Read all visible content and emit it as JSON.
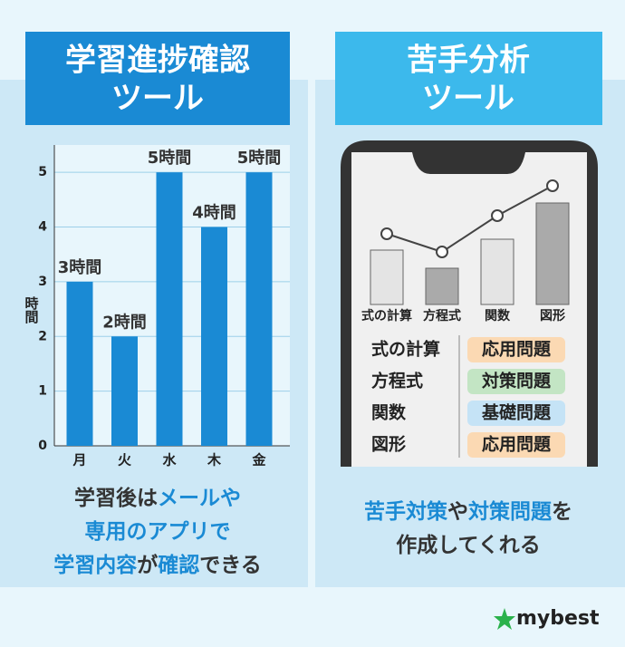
{
  "left": {
    "title": [
      "学習進捗確認",
      "ツール"
    ],
    "chart": {
      "type": "bar",
      "y_label": "時間",
      "categories": [
        "月",
        "火",
        "水",
        "木",
        "金"
      ],
      "values": [
        3,
        2,
        5,
        4,
        5
      ],
      "value_labels": [
        "3時間",
        "2時間",
        "5時間",
        "4時間",
        "5時間"
      ],
      "color": "#1a8ad4",
      "ylim": [
        0,
        5.5
      ],
      "yticks": [
        0,
        1,
        2,
        3,
        4,
        5
      ],
      "grid": true
    },
    "caption": [
      [
        {
          "text": "学習後は",
          "em": false
        },
        {
          "text": "メールや",
          "em": true
        }
      ],
      [
        {
          "text": "専用のアプリで",
          "em": true
        }
      ],
      [
        {
          "text": "学習内容",
          "em": true
        },
        {
          "text": "が",
          "em": false
        },
        {
          "text": "確認",
          "em": true
        },
        {
          "text": "できる",
          "em": false
        }
      ]
    ]
  },
  "right": {
    "title": [
      "苦手分析",
      "ツール"
    ],
    "phone_categories": [
      "式の計算",
      "方程式",
      "関数",
      "図形"
    ],
    "table": [
      {
        "subject": "式の計算",
        "tag": "応用問題",
        "tag_color": "#fbd9b3"
      },
      {
        "subject": "方程式",
        "tag": "対策問題",
        "tag_color": "#c3e5c4"
      },
      {
        "subject": "関数",
        "tag": "基礎問題",
        "tag_color": "#c5e3f6"
      },
      {
        "subject": "図形",
        "tag": "応用問題",
        "tag_color": "#fbd9b3"
      }
    ],
    "caption": [
      [
        {
          "text": "苦手対策",
          "em": true
        },
        {
          "text": "や",
          "em": false
        },
        {
          "text": "対策問題",
          "em": true
        },
        {
          "text": "を",
          "em": false
        }
      ],
      [
        {
          "text": "作成してくれる",
          "em": false
        }
      ]
    ]
  },
  "logo": "mybest"
}
